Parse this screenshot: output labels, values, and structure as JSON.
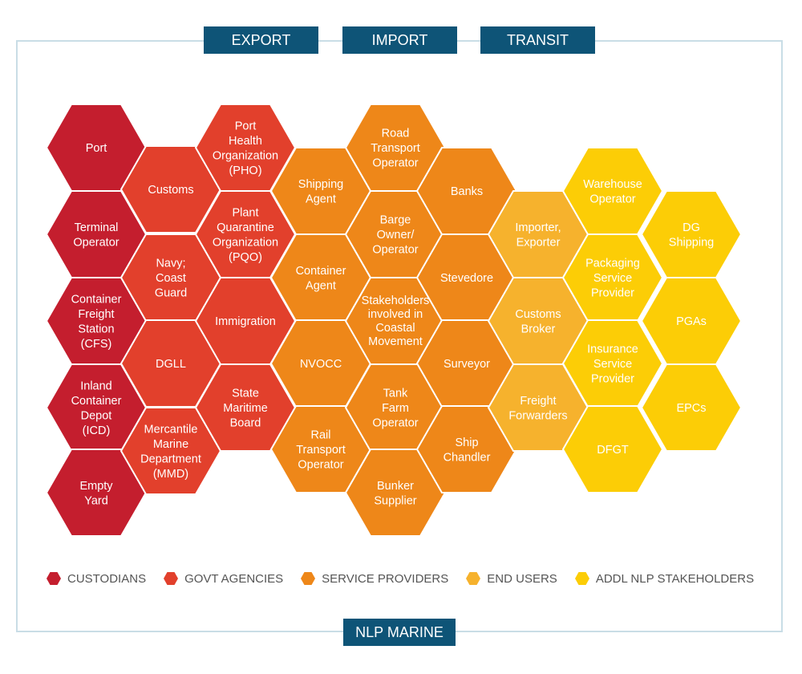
{
  "tabs": [
    {
      "id": "export",
      "label": "EXPORT"
    },
    {
      "id": "import",
      "label": "IMPORT"
    },
    {
      "id": "transit",
      "label": "TRANSIT"
    }
  ],
  "footer_label": "NLP MARINE",
  "categories": {
    "custodians": {
      "label": "CUSTODIANS",
      "color": "#c41e2e"
    },
    "govt": {
      "label": "GOVT AGENCIES",
      "color": "#e2402c"
    },
    "service": {
      "label": "SERVICE PROVIDERS",
      "color": "#ee8719"
    },
    "end": {
      "label": "END USERS",
      "color": "#f6b22d"
    },
    "addl": {
      "label": "ADDL NLP STAKEHOLDERS",
      "color": "#fccd06"
    }
  },
  "legend_order": [
    "custodians",
    "govt",
    "service",
    "end",
    "addl"
  ],
  "stakeholders": [
    {
      "name": "hex-port",
      "lines": [
        "Port"
      ],
      "cat": "custodians"
    },
    {
      "name": "hex-terminal-operator",
      "lines": [
        "Terminal",
        "Operator"
      ],
      "cat": "custodians"
    },
    {
      "name": "hex-cfs",
      "lines": [
        "Container",
        "Freight",
        "Station",
        "(CFS)"
      ],
      "cat": "custodians"
    },
    {
      "name": "hex-icd",
      "lines": [
        "Inland",
        "Container",
        "Depot",
        "(ICD)"
      ],
      "cat": "custodians"
    },
    {
      "name": "hex-empty-yard",
      "lines": [
        "Empty",
        "Yard"
      ],
      "cat": "custodians"
    },
    {
      "name": "hex-customs",
      "lines": [
        "Customs"
      ],
      "cat": "govt"
    },
    {
      "name": "hex-navy-coast-guard",
      "lines": [
        "Navy;",
        "Coast",
        "Guard"
      ],
      "cat": "govt"
    },
    {
      "name": "hex-dgll",
      "lines": [
        "DGLL"
      ],
      "cat": "govt"
    },
    {
      "name": "hex-mmd",
      "lines": [
        "Mercantile",
        "Marine",
        "Department",
        "(MMD)"
      ],
      "cat": "govt"
    },
    {
      "name": "hex-pho",
      "lines": [
        "Port",
        "Health",
        "Organization",
        "(PHO)"
      ],
      "cat": "govt"
    },
    {
      "name": "hex-pqo",
      "lines": [
        "Plant",
        "Quarantine",
        "Organization",
        "(PQO)"
      ],
      "cat": "govt"
    },
    {
      "name": "hex-immigration",
      "lines": [
        "Immigration"
      ],
      "cat": "govt"
    },
    {
      "name": "hex-state-maritime-board",
      "lines": [
        "State",
        "Maritime",
        "Board"
      ],
      "cat": "govt"
    },
    {
      "name": "hex-shipping-agent",
      "lines": [
        "Shipping",
        "Agent"
      ],
      "cat": "service"
    },
    {
      "name": "hex-container-agent",
      "lines": [
        "Container",
        "Agent"
      ],
      "cat": "service"
    },
    {
      "name": "hex-nvocc",
      "lines": [
        "NVOCC"
      ],
      "cat": "service"
    },
    {
      "name": "hex-rail-transport-operator",
      "lines": [
        "Rail",
        "Transport",
        "Operator"
      ],
      "cat": "service"
    },
    {
      "name": "hex-road-transport-operator",
      "lines": [
        "Road",
        "Transport",
        "Operator"
      ],
      "cat": "service"
    },
    {
      "name": "hex-barge-owner-operator",
      "lines": [
        "Barge",
        "Owner/",
        "Operator"
      ],
      "cat": "service"
    },
    {
      "name": "hex-coastal-stakeholders",
      "lines": [
        "Stakeholders",
        "involved in",
        "Coastal",
        "Movement"
      ],
      "cat": "service",
      "small": true
    },
    {
      "name": "hex-tank-farm-operator",
      "lines": [
        "Tank",
        "Farm",
        "Operator"
      ],
      "cat": "service"
    },
    {
      "name": "hex-bunker-supplier",
      "lines": [
        "Bunker",
        "Supplier"
      ],
      "cat": "service"
    },
    {
      "name": "hex-banks",
      "lines": [
        "Banks"
      ],
      "cat": "service"
    },
    {
      "name": "hex-stevedore",
      "lines": [
        "Stevedore"
      ],
      "cat": "service"
    },
    {
      "name": "hex-surveyor",
      "lines": [
        "Surveyor"
      ],
      "cat": "service"
    },
    {
      "name": "hex-ship-chandler",
      "lines": [
        "Ship",
        "Chandler"
      ],
      "cat": "service"
    },
    {
      "name": "hex-importer-exporter",
      "lines": [
        "Importer,",
        "Exporter"
      ],
      "cat": "end"
    },
    {
      "name": "hex-customs-broker",
      "lines": [
        "Customs",
        "Broker"
      ],
      "cat": "end"
    },
    {
      "name": "hex-freight-forwarders",
      "lines": [
        "Freight",
        "Forwarders"
      ],
      "cat": "end"
    },
    {
      "name": "hex-warehouse-operator",
      "lines": [
        "Warehouse",
        "Operator"
      ],
      "cat": "addl"
    },
    {
      "name": "hex-packaging-service-provider",
      "lines": [
        "Packaging",
        "Service",
        "Provider"
      ],
      "cat": "addl"
    },
    {
      "name": "hex-insurance-service-provider",
      "lines": [
        "Insurance",
        "Service",
        "Provider"
      ],
      "cat": "addl"
    },
    {
      "name": "hex-dfgt",
      "lines": [
        "DFGT"
      ],
      "cat": "addl"
    },
    {
      "name": "hex-dg-shipping",
      "lines": [
        "DG",
        "Shipping"
      ],
      "cat": "addl"
    },
    {
      "name": "hex-pgas",
      "lines": [
        "PGAs"
      ],
      "cat": "addl"
    },
    {
      "name": "hex-epcs",
      "lines": [
        "EPCs"
      ],
      "cat": "addl"
    }
  ]
}
